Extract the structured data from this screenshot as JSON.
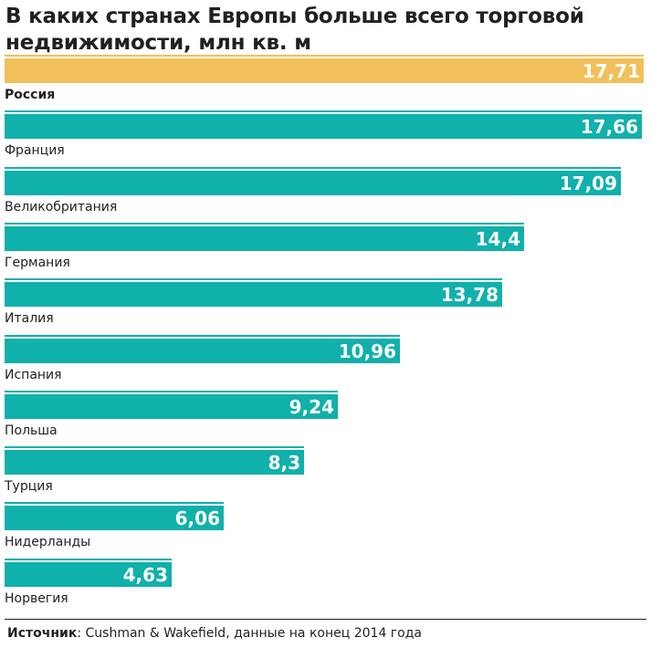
{
  "title": "В каких странах Европы больше всего торговой недвижимости, млн кв. м",
  "source": {
    "label": "Источник",
    "text": "Cushman & Wakefield, данные на конец 2014 года"
  },
  "colors": {
    "highlight": "#f2c05a",
    "bar": "#10b0ab",
    "text": "#231f20",
    "value": "#ffffff"
  },
  "chart_data": {
    "type": "bar",
    "orientation": "horizontal",
    "title": "В каких странах Европы больше всего торговой недвижимости, млн кв. м",
    "categories": [
      "Россия",
      "Франция",
      "Великобритания",
      "Германия",
      "Италия",
      "Испания",
      "Польша",
      "Турция",
      "Нидерланды",
      "Норвегия"
    ],
    "values": [
      17.71,
      17.66,
      17.09,
      14.4,
      13.78,
      10.96,
      9.24,
      8.3,
      6.06,
      4.63
    ],
    "value_labels": [
      "17,71",
      "17,66",
      "17,09",
      "14,4",
      "13,78",
      "10,96",
      "9,24",
      "8,3",
      "6,06",
      "4,63"
    ],
    "highlighted_category": "Россия",
    "xlim": [
      0,
      17.71
    ],
    "grid": false,
    "legend": "none"
  }
}
